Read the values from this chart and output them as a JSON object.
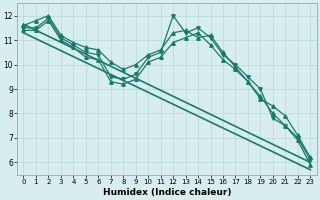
{
  "xlabel": "Humidex (Indice chaleur)",
  "bg_color": "#d8eeee",
  "line_color": "#1a7a6a",
  "grid_color": "#b8d8d8",
  "x_values": [
    0,
    1,
    2,
    3,
    4,
    5,
    6,
    7,
    8,
    9,
    10,
    11,
    12,
    13,
    14,
    15,
    16,
    17,
    18,
    19,
    20,
    21,
    22,
    23
  ],
  "y_main": [
    11.5,
    11.5,
    11.9,
    11.1,
    10.8,
    10.5,
    10.4,
    9.5,
    9.4,
    9.6,
    10.3,
    10.5,
    12.0,
    11.3,
    11.5,
    11.1,
    10.4,
    10.0,
    9.5,
    9.0,
    7.8,
    7.5,
    7.0,
    6.1
  ],
  "y_upper": [
    11.6,
    11.8,
    12.0,
    11.2,
    10.9,
    10.7,
    10.6,
    10.1,
    9.8,
    10.0,
    10.4,
    10.6,
    11.3,
    11.4,
    11.1,
    11.2,
    10.5,
    9.9,
    9.3,
    8.6,
    8.3,
    7.9,
    7.1,
    6.2
  ],
  "y_lower": [
    11.4,
    11.4,
    11.8,
    11.0,
    10.7,
    10.3,
    10.2,
    9.3,
    9.2,
    9.4,
    10.1,
    10.3,
    10.9,
    11.1,
    11.3,
    10.8,
    10.2,
    9.8,
    9.3,
    8.7,
    8.0,
    7.5,
    6.9,
    5.9
  ],
  "trend1_x": [
    0,
    23
  ],
  "trend1_y": [
    11.65,
    6.0
  ],
  "trend2_x": [
    0,
    23
  ],
  "trend2_y": [
    11.3,
    5.7
  ],
  "xlim": [
    -0.5,
    23.5
  ],
  "ylim": [
    5.5,
    12.5
  ],
  "yticks": [
    6,
    7,
    8,
    9,
    10,
    11,
    12
  ],
  "xticks": [
    0,
    1,
    2,
    3,
    4,
    5,
    6,
    7,
    8,
    9,
    10,
    11,
    12,
    13,
    14,
    15,
    16,
    17,
    18,
    19,
    20,
    21,
    22,
    23
  ]
}
